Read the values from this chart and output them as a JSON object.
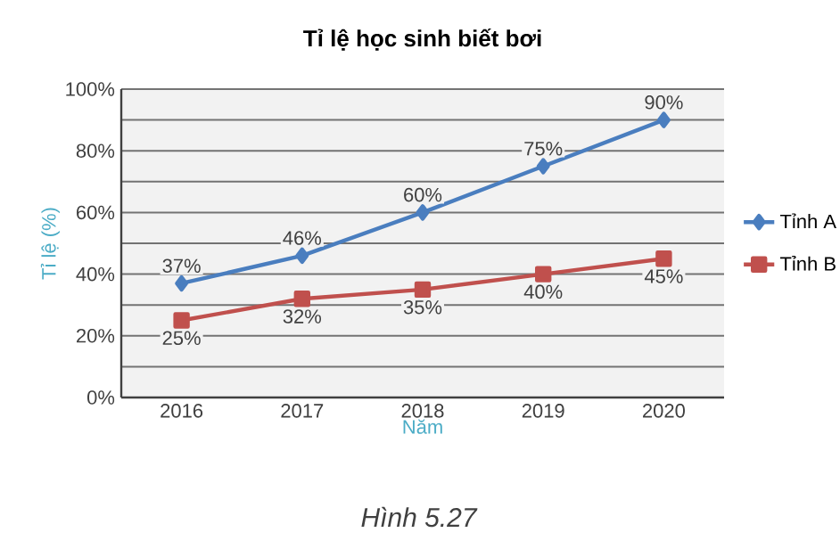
{
  "chart_data": {
    "type": "line",
    "title": "Tỉ lệ học sinh biết bơi",
    "xlabel": "Năm",
    "ylabel": "Tỉ lệ (%)",
    "categories": [
      "2016",
      "2017",
      "2018",
      "2019",
      "2020"
    ],
    "series": [
      {
        "name": "Tỉnh A",
        "color": "#4a7ebf",
        "marker": "diamond",
        "values": [
          37,
          46,
          60,
          75,
          90
        ],
        "value_labels": [
          "37%",
          "46%",
          "60%",
          "75%",
          "90%"
        ]
      },
      {
        "name": "Tỉnh B",
        "color": "#c0504d",
        "marker": "square",
        "values": [
          25,
          32,
          35,
          40,
          45
        ],
        "value_labels": [
          "25%",
          "32%",
          "35%",
          "40%",
          "45%"
        ]
      }
    ],
    "ylim": [
      0,
      100
    ],
    "yticks": [
      {
        "value": 0,
        "label": "0%"
      },
      {
        "value": 10,
        "label": null
      },
      {
        "value": 20,
        "label": "20%"
      },
      {
        "value": 30,
        "label": null
      },
      {
        "value": 40,
        "label": "40%"
      },
      {
        "value": 50,
        "label": null
      },
      {
        "value": 60,
        "label": "60%"
      },
      {
        "value": 70,
        "label": null
      },
      {
        "value": 80,
        "label": "80%"
      },
      {
        "value": 90,
        "label": null
      },
      {
        "value": 100,
        "label": "100%"
      }
    ],
    "grid": "y",
    "legend": "right",
    "line_style": "solid",
    "annotations": [
      "*Hình 5.27*"
    ]
  }
}
